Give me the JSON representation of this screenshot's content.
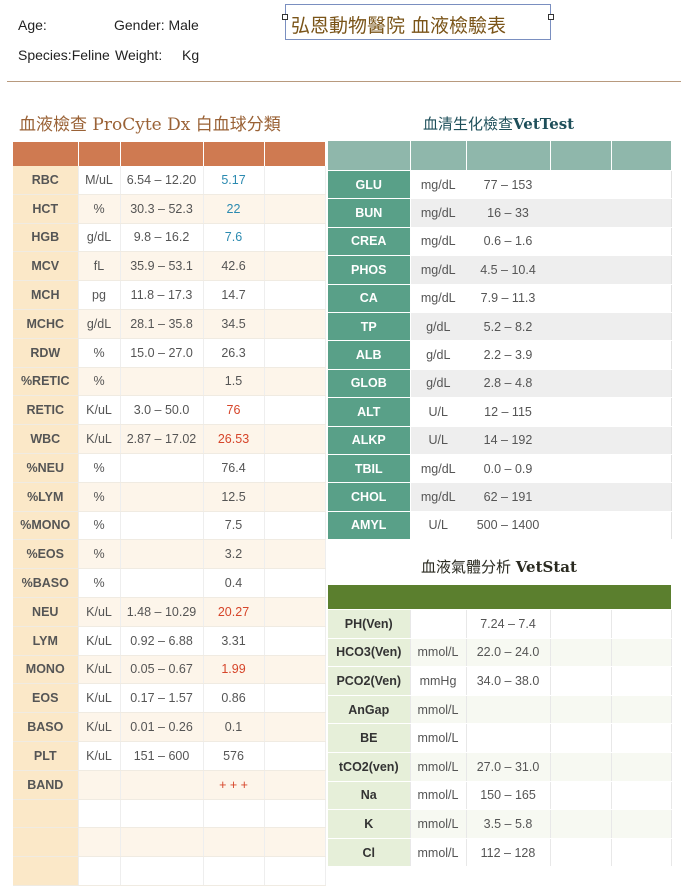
{
  "header": {
    "age_label": "Age:",
    "gender_label": "Gender: Male",
    "species_label": "Species:Feline",
    "weight_label": "Weight:",
    "weight_unit": "Kg",
    "clinic_title": "弘恩動物醫院 血液檢驗表"
  },
  "cbc": {
    "title": "血液檢查 ProCyte Dx 白血球分類",
    "rows": [
      {
        "name": "RBC",
        "unit": "M/uL",
        "range": "6.54 – 12.20",
        "value": "5.17",
        "flag": "blue"
      },
      {
        "name": "HCT",
        "unit": "%",
        "range": "30.3 – 52.3",
        "value": "22",
        "flag": "blue"
      },
      {
        "name": "HGB",
        "unit": "g/dL",
        "range": "9.8 – 16.2",
        "value": "7.6",
        "flag": "blue"
      },
      {
        "name": "MCV",
        "unit": "fL",
        "range": "35.9 – 53.1",
        "value": "42.6",
        "flag": ""
      },
      {
        "name": "MCH",
        "unit": "pg",
        "range": "11.8 – 17.3",
        "value": "14.7",
        "flag": ""
      },
      {
        "name": "MCHC",
        "unit": "g/dL",
        "range": "28.1 – 35.8",
        "value": "34.5",
        "flag": ""
      },
      {
        "name": "RDW",
        "unit": "%",
        "range": "15.0 – 27.0",
        "value": "26.3",
        "flag": ""
      },
      {
        "name": "%RETIC",
        "unit": "%",
        "range": "",
        "value": "1.5",
        "flag": ""
      },
      {
        "name": "RETIC",
        "unit": "K/uL",
        "range": "3.0 – 50.0",
        "value": "76",
        "flag": "red"
      },
      {
        "name": "WBC",
        "unit": "K/uL",
        "range": "2.87 – 17.02",
        "value": "26.53",
        "flag": "red"
      },
      {
        "name": "%NEU",
        "unit": "%",
        "range": "",
        "value": "76.4",
        "flag": ""
      },
      {
        "name": "%LYM",
        "unit": "%",
        "range": "",
        "value": "12.5",
        "flag": ""
      },
      {
        "name": "%MONO",
        "unit": "%",
        "range": "",
        "value": "7.5",
        "flag": ""
      },
      {
        "name": "%EOS",
        "unit": "%",
        "range": "",
        "value": "3.2",
        "flag": ""
      },
      {
        "name": "%BASO",
        "unit": "%",
        "range": "",
        "value": "0.4",
        "flag": ""
      },
      {
        "name": "NEU",
        "unit": "K/uL",
        "range": "1.48 – 10.29",
        "value": "20.27",
        "flag": "red"
      },
      {
        "name": "LYM",
        "unit": "K/uL",
        "range": "0.92 – 6.88",
        "value": "3.31",
        "flag": ""
      },
      {
        "name": "MONO",
        "unit": "K/uL",
        "range": "0.05 – 0.67",
        "value": "1.99",
        "flag": "red"
      },
      {
        "name": "EOS",
        "unit": "K/uL",
        "range": "0.17 – 1.57",
        "value": "0.86",
        "flag": ""
      },
      {
        "name": "BASO",
        "unit": "K/uL",
        "range": "0.01 – 0.26",
        "value": "0.1",
        "flag": ""
      },
      {
        "name": "PLT",
        "unit": "K/uL",
        "range": "151 – 600",
        "value": "576",
        "flag": ""
      },
      {
        "name": "BAND",
        "unit": "",
        "range": "",
        "value": "+ + +",
        "flag": "red"
      },
      {
        "name": "",
        "unit": "",
        "range": "",
        "value": "",
        "flag": ""
      },
      {
        "name": "",
        "unit": "",
        "range": "",
        "value": "",
        "flag": ""
      },
      {
        "name": "",
        "unit": "",
        "range": "",
        "value": "",
        "flag": ""
      }
    ]
  },
  "chem": {
    "title_cn": "血清生化檢查",
    "title_en": "VetTest",
    "rows": [
      {
        "name": "GLU",
        "unit": "mg/dL",
        "range": "77 – 153"
      },
      {
        "name": "BUN",
        "unit": "mg/dL",
        "range": "16 – 33"
      },
      {
        "name": "CREA",
        "unit": "mg/dL",
        "range": "0.6 – 1.6"
      },
      {
        "name": "PHOS",
        "unit": "mg/dL",
        "range": "4.5 – 10.4"
      },
      {
        "name": "CA",
        "unit": "mg/dL",
        "range": "7.9 – 11.3"
      },
      {
        "name": "TP",
        "unit": "g/dL",
        "range": "5.2 – 8.2"
      },
      {
        "name": "ALB",
        "unit": "g/dL",
        "range": "2.2 – 3.9"
      },
      {
        "name": "GLOB",
        "unit": "g/dL",
        "range": "2.8 – 4.8"
      },
      {
        "name": "ALT",
        "unit": "U/L",
        "range": "12 – 115"
      },
      {
        "name": "ALKP",
        "unit": "U/L",
        "range": "14 – 192"
      },
      {
        "name": "TBIL",
        "unit": "mg/dL",
        "range": "0.0 – 0.9"
      },
      {
        "name": "CHOL",
        "unit": "mg/dL",
        "range": "62 – 191"
      },
      {
        "name": "AMYL",
        "unit": "U/L",
        "range": "500 – 1400"
      }
    ]
  },
  "gas": {
    "title_cn": "血液氣體分析",
    "title_en": "VetStat",
    "rows": [
      {
        "name": "PH(Ven)",
        "unit": "",
        "range": "7.24 – 7.4"
      },
      {
        "name": "HCO3(Ven)",
        "unit": "mmol/L",
        "range": "22.0 – 24.0"
      },
      {
        "name": "PCO2(Ven)",
        "unit": "mmHg",
        "range": "34.0 – 38.0"
      },
      {
        "name": "AnGap",
        "unit": "mmol/L",
        "range": ""
      },
      {
        "name": "BE",
        "unit": "mmol/L",
        "range": ""
      },
      {
        "name": "tCO2(ven)",
        "unit": "mmol/L",
        "range": "27.0 – 31.0"
      },
      {
        "name": "Na",
        "unit": "mmol/L",
        "range": "150 – 165"
      },
      {
        "name": "K",
        "unit": "mmol/L",
        "range": "3.5 – 5.8"
      },
      {
        "name": "Cl",
        "unit": "mmol/L",
        "range": "112 – 128"
      }
    ]
  }
}
